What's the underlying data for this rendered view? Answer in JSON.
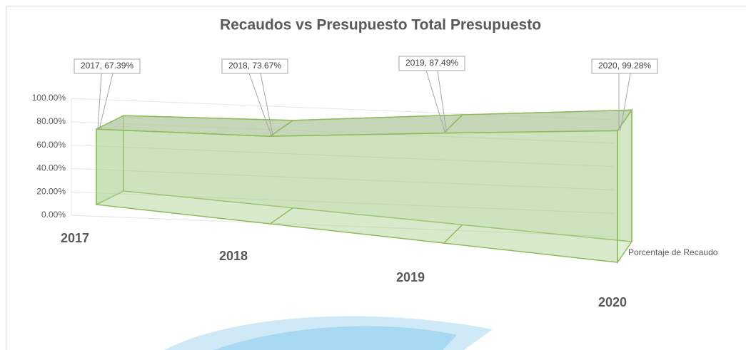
{
  "chart_data": {
    "type": "area3d",
    "title": "Recaudos vs Presupuesto Total Presupuesto",
    "categories": [
      "2017",
      "2018",
      "2019",
      "2020"
    ],
    "series": [
      {
        "name": "Porcentaje de Recaudo",
        "color": "#a9d18e",
        "values": [
          67.39,
          73.67,
          87.49,
          99.28
        ],
        "value_labels": [
          "2017, 67.39%",
          "2018, 73.67%",
          "2019, 87.49%",
          "2020, 99.28%"
        ]
      }
    ],
    "ylim": [
      0,
      100
    ],
    "yticks": [
      {
        "value": 0,
        "label": "0.00%"
      },
      {
        "value": 20,
        "label": "20.00%"
      },
      {
        "value": 40,
        "label": "40.00%"
      },
      {
        "value": 60,
        "label": "60.00%"
      },
      {
        "value": 80,
        "label": "80.00%"
      },
      {
        "value": 100,
        "label": "100.00%"
      }
    ],
    "grid": true
  }
}
